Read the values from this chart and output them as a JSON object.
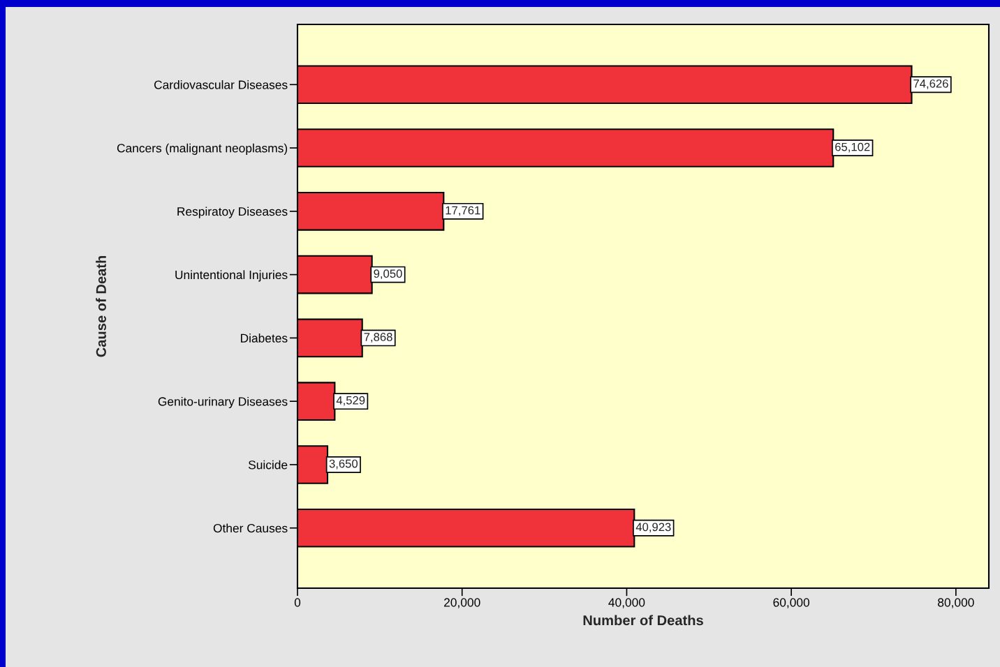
{
  "chart_data": {
    "type": "bar",
    "orientation": "horizontal",
    "categories": [
      "Cardiovascular Diseases",
      "Cancers (malignant neoplasms)",
      "Respiratoy Diseases",
      "Unintentional Injuries",
      "Diabetes",
      "Genito-urinary Diseases",
      "Suicide",
      "Other Causes"
    ],
    "values": [
      74626,
      65102,
      17761,
      9050,
      7868,
      4529,
      3650,
      40923
    ],
    "value_labels": [
      "74,626",
      "65,102",
      "17,761",
      "9,050",
      "7,868",
      "4,529",
      "3,650",
      "40,923"
    ],
    "color": "#f0333b",
    "xlabel": "Number of Deaths",
    "ylabel": "Cause of Death",
    "xlim": [
      0,
      84000
    ],
    "xticks": [
      0,
      {
        "value": 20000,
        "label": "20,000"
      },
      {
        "value": 40000,
        "label": "40,000"
      },
      {
        "value": 60000,
        "label": "60,000"
      },
      {
        "value": 80000,
        "label": "80,000"
      }
    ],
    "grid": false,
    "legend": false
  }
}
